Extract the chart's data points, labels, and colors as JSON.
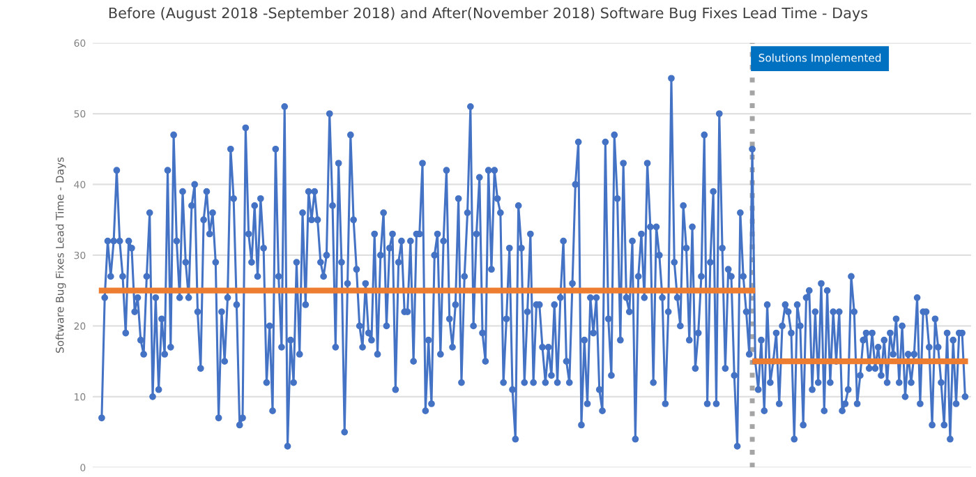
{
  "chart_data": {
    "type": "line",
    "title": "Before (August 2018 -September 2018) and After(November 2018) Software Bug Fixes Lead Time - Days",
    "ylabel": "Software Bug Fixes Lead Time - Days",
    "categories": [
      null,
      null,
      null,
      null,
      null,
      null,
      null,
      null,
      null,
      null,
      null,
      null,
      null,
      null,
      null,
      null,
      null,
      null,
      null,
      null,
      null,
      null,
      null,
      null,
      null,
      null,
      null,
      null,
      null,
      null,
      null,
      null,
      null,
      null,
      null,
      null,
      null,
      null,
      null,
      null,
      null,
      null,
      null,
      null,
      null,
      null,
      null,
      null,
      null,
      null,
      null,
      null,
      null,
      null,
      null,
      null,
      null,
      null,
      null,
      null,
      null,
      null,
      null,
      null,
      null,
      null,
      null,
      null,
      null,
      null,
      null,
      null,
      null,
      null,
      null,
      null,
      null,
      null,
      null,
      null,
      null,
      null,
      null,
      null,
      null,
      null,
      null,
      null,
      null,
      null,
      null,
      null,
      null,
      null,
      null,
      null,
      null,
      null,
      null,
      null,
      null,
      null,
      null,
      null,
      null,
      null,
      null,
      null,
      null,
      null,
      null,
      null,
      null,
      null,
      null,
      null,
      null,
      null,
      null,
      null,
      null,
      null,
      null,
      null,
      null,
      null,
      null,
      null,
      null,
      null,
      null,
      null,
      null,
      null,
      null,
      null,
      null,
      null,
      null,
      null,
      null,
      null,
      null,
      null,
      null,
      null,
      null,
      null,
      null,
      null,
      null,
      null,
      null,
      null,
      null,
      null,
      null,
      null,
      null,
      null,
      null,
      null,
      null,
      null,
      null,
      null,
      null,
      null,
      null,
      null,
      null,
      null,
      null,
      null,
      null,
      null,
      null,
      null,
      null,
      null,
      null,
      null,
      null,
      null,
      null,
      null,
      null,
      null,
      null,
      null,
      null,
      null,
      null,
      null,
      null,
      null,
      null,
      null,
      null,
      null,
      null,
      null,
      null,
      null,
      null,
      null,
      null,
      null,
      null,
      null,
      null,
      null,
      null,
      null,
      null,
      null,
      null,
      null,
      null,
      null,
      null,
      null,
      null,
      null,
      null,
      null,
      null,
      null,
      null,
      null,
      null,
      null,
      null,
      null,
      null,
      null,
      null,
      null,
      null,
      null,
      null,
      null,
      null,
      null,
      null,
      null,
      null,
      null,
      null,
      null,
      null,
      null,
      null,
      null,
      null,
      null,
      null,
      null,
      null,
      null,
      null,
      null,
      null,
      null,
      null,
      null,
      null,
      null,
      null,
      null,
      null,
      null,
      null,
      null,
      null,
      null,
      null,
      null,
      null,
      null,
      null,
      null,
      null,
      null,
      null,
      null,
      null,
      null,
      null
    ],
    "series": [
      {
        "color": "#4472c4",
        "marker": "circle",
        "values": [
          7,
          24,
          32,
          27,
          32,
          42,
          32,
          27,
          19,
          32,
          31,
          22,
          24,
          18,
          16,
          27,
          36,
          10,
          24,
          11,
          21,
          16,
          42,
          17,
          47,
          32,
          24,
          39,
          29,
          24,
          37,
          40,
          22,
          14,
          35,
          39,
          33,
          36,
          29,
          7,
          22,
          15,
          24,
          45,
          38,
          23,
          6,
          7,
          48,
          33,
          29,
          37,
          27,
          38,
          31,
          12,
          20,
          8,
          45,
          27,
          17,
          51,
          3,
          18,
          12,
          29,
          16,
          36,
          23,
          39,
          35,
          39,
          35,
          29,
          27,
          30,
          50,
          37,
          17,
          43,
          29,
          5,
          26,
          47,
          35,
          28,
          20,
          17,
          26,
          19,
          18,
          33,
          16,
          30,
          36,
          20,
          31,
          33,
          11,
          29,
          32,
          22,
          22,
          32,
          15,
          33,
          33,
          43,
          8,
          18,
          9,
          30,
          33,
          16,
          32,
          42,
          21,
          17,
          23,
          38,
          12,
          27,
          36,
          51,
          20,
          33,
          41,
          19,
          15,
          42,
          28,
          42,
          38,
          36,
          12,
          21,
          31,
          11,
          4,
          37,
          31,
          12,
          22,
          33,
          12,
          23,
          23,
          17,
          12,
          17,
          13,
          23,
          12,
          24,
          32,
          15,
          12,
          26,
          40,
          46,
          6,
          18,
          9,
          24,
          19,
          24,
          11,
          8,
          46,
          21,
          13,
          47,
          38,
          18,
          43,
          24,
          22,
          32,
          4,
          27,
          33,
          24,
          43,
          34,
          12,
          34,
          30,
          24,
          9,
          22,
          55,
          29,
          24,
          20,
          37,
          31,
          18,
          34,
          14,
          19,
          27,
          47,
          9,
          29,
          39,
          9,
          50,
          31,
          14,
          28,
          27,
          13,
          3,
          36,
          27,
          22,
          16,
          45,
          15,
          11,
          18,
          8,
          23,
          12,
          15,
          19,
          9,
          20,
          23,
          22,
          19,
          4,
          23,
          20,
          6,
          24,
          25,
          11,
          22,
          12,
          26,
          8,
          25,
          12,
          22,
          15,
          22,
          8,
          9,
          11,
          27,
          22,
          9,
          13,
          18,
          19,
          14,
          19,
          14,
          17,
          13,
          18,
          12,
          19,
          16,
          21,
          12,
          20,
          10,
          16,
          12,
          16,
          24,
          9,
          22,
          22,
          17,
          6,
          21,
          17,
          12,
          6,
          19,
          4,
          18,
          9,
          19,
          19,
          10
        ]
      },
      {
        "color": "#ed7d31",
        "values": [
          25,
          25,
          25,
          25,
          25,
          25,
          25,
          25,
          25,
          25,
          25,
          25,
          25,
          25,
          25,
          25,
          25,
          25,
          25,
          25,
          25,
          25,
          25,
          25,
          25,
          25,
          25,
          25,
          25,
          25,
          25,
          25,
          25,
          25,
          25,
          25,
          25,
          25,
          25,
          25,
          25,
          25,
          25,
          25,
          25,
          25,
          25,
          25,
          25,
          25,
          25,
          25,
          25,
          25,
          25,
          25,
          25,
          25,
          25,
          25,
          25,
          25,
          25,
          25,
          25,
          25,
          25,
          25,
          25,
          25,
          25,
          25,
          25,
          25,
          25,
          25,
          25,
          25,
          25,
          25,
          25,
          25,
          25,
          25,
          25,
          25,
          25,
          25,
          25,
          25,
          25,
          25,
          25,
          25,
          25,
          25,
          25,
          25,
          25,
          25,
          25,
          25,
          25,
          25,
          25,
          25,
          25,
          25,
          25,
          25,
          25,
          25,
          25,
          25,
          25,
          25,
          25,
          25,
          25,
          25,
          25,
          25,
          25,
          25,
          25,
          25,
          25,
          25,
          25,
          25,
          25,
          25,
          25,
          25,
          25,
          25,
          25,
          25,
          25,
          25,
          25,
          25,
          25,
          25,
          25,
          25,
          25,
          25,
          25,
          25,
          25,
          25,
          25,
          25,
          25,
          25,
          25,
          25,
          25,
          25,
          25,
          25,
          25,
          25,
          25,
          25,
          25,
          25,
          25,
          25,
          25,
          25,
          25,
          25,
          25,
          25,
          25,
          25,
          25,
          25,
          25,
          25,
          25,
          25,
          25,
          25,
          25,
          25,
          25,
          25,
          25,
          25,
          25,
          25,
          25,
          25,
          25,
          25,
          25,
          25,
          25,
          25,
          25,
          25,
          25,
          25,
          25,
          25,
          25,
          25,
          25,
          25,
          25,
          25,
          25,
          25,
          25,
          25,
          null,
          null,
          null,
          null,
          null,
          null,
          null,
          null,
          null,
          null,
          null,
          null,
          null,
          null,
          null,
          null,
          null,
          null,
          null,
          null,
          null,
          null,
          null,
          null,
          null,
          null,
          null,
          null,
          null,
          null,
          null,
          null,
          null,
          null,
          null,
          null,
          null,
          null,
          null,
          null,
          null,
          null,
          null,
          null,
          null,
          null,
          null,
          null,
          null,
          null,
          null,
          null,
          null,
          null,
          null,
          null,
          null,
          null,
          null,
          null,
          null,
          null,
          null,
          null,
          null,
          null,
          null,
          null,
          null,
          null,
          null
        ]
      },
      {
        "color": "#ed7d31",
        "values": [
          null,
          null,
          null,
          null,
          null,
          null,
          null,
          null,
          null,
          null,
          null,
          null,
          null,
          null,
          null,
          null,
          null,
          null,
          null,
          null,
          null,
          null,
          null,
          null,
          null,
          null,
          null,
          null,
          null,
          null,
          null,
          null,
          null,
          null,
          null,
          null,
          null,
          null,
          null,
          null,
          null,
          null,
          null,
          null,
          null,
          null,
          null,
          null,
          null,
          null,
          null,
          null,
          null,
          null,
          null,
          null,
          null,
          null,
          null,
          null,
          null,
          null,
          null,
          null,
          null,
          null,
          null,
          null,
          null,
          null,
          null,
          null,
          null,
          null,
          null,
          null,
          null,
          null,
          null,
          null,
          null,
          null,
          null,
          null,
          null,
          null,
          null,
          null,
          null,
          null,
          null,
          null,
          null,
          null,
          null,
          null,
          null,
          null,
          null,
          null,
          null,
          null,
          null,
          null,
          null,
          null,
          null,
          null,
          null,
          null,
          null,
          null,
          null,
          null,
          null,
          null,
          null,
          null,
          null,
          null,
          null,
          null,
          null,
          null,
          null,
          null,
          null,
          null,
          null,
          null,
          null,
          null,
          null,
          null,
          null,
          null,
          null,
          null,
          null,
          null,
          null,
          null,
          null,
          null,
          null,
          null,
          null,
          null,
          null,
          null,
          null,
          null,
          null,
          null,
          null,
          null,
          null,
          null,
          null,
          null,
          null,
          null,
          null,
          null,
          null,
          null,
          null,
          null,
          null,
          null,
          null,
          null,
          null,
          null,
          null,
          null,
          null,
          null,
          null,
          null,
          null,
          null,
          null,
          null,
          null,
          null,
          null,
          null,
          null,
          null,
          null,
          null,
          null,
          null,
          null,
          null,
          null,
          null,
          null,
          null,
          null,
          null,
          null,
          null,
          null,
          null,
          null,
          null,
          null,
          null,
          null,
          null,
          null,
          null,
          null,
          null,
          null,
          null,
          15,
          15,
          15,
          15,
          15,
          15,
          15,
          15,
          15,
          15,
          15,
          15,
          15,
          15,
          15,
          15,
          15,
          15,
          15,
          15,
          15,
          15,
          15,
          15,
          15,
          15,
          15,
          15,
          15,
          15,
          15,
          15,
          15,
          15,
          15,
          15,
          15,
          15,
          15,
          15,
          15,
          15,
          15,
          15,
          15,
          15,
          15,
          15,
          15,
          15,
          15,
          15,
          15,
          15,
          15,
          15,
          15,
          15,
          15,
          15,
          15,
          15,
          15,
          15,
          15,
          15,
          15,
          15,
          15,
          15,
          15
        ]
      }
    ],
    "annotations": [
      "Solutions Implemented"
    ],
    "ylim": [
      0,
      60
    ],
    "yticks": [
      0,
      10,
      20,
      30,
      40,
      50,
      60
    ],
    "grid": "y",
    "legend": false
  }
}
